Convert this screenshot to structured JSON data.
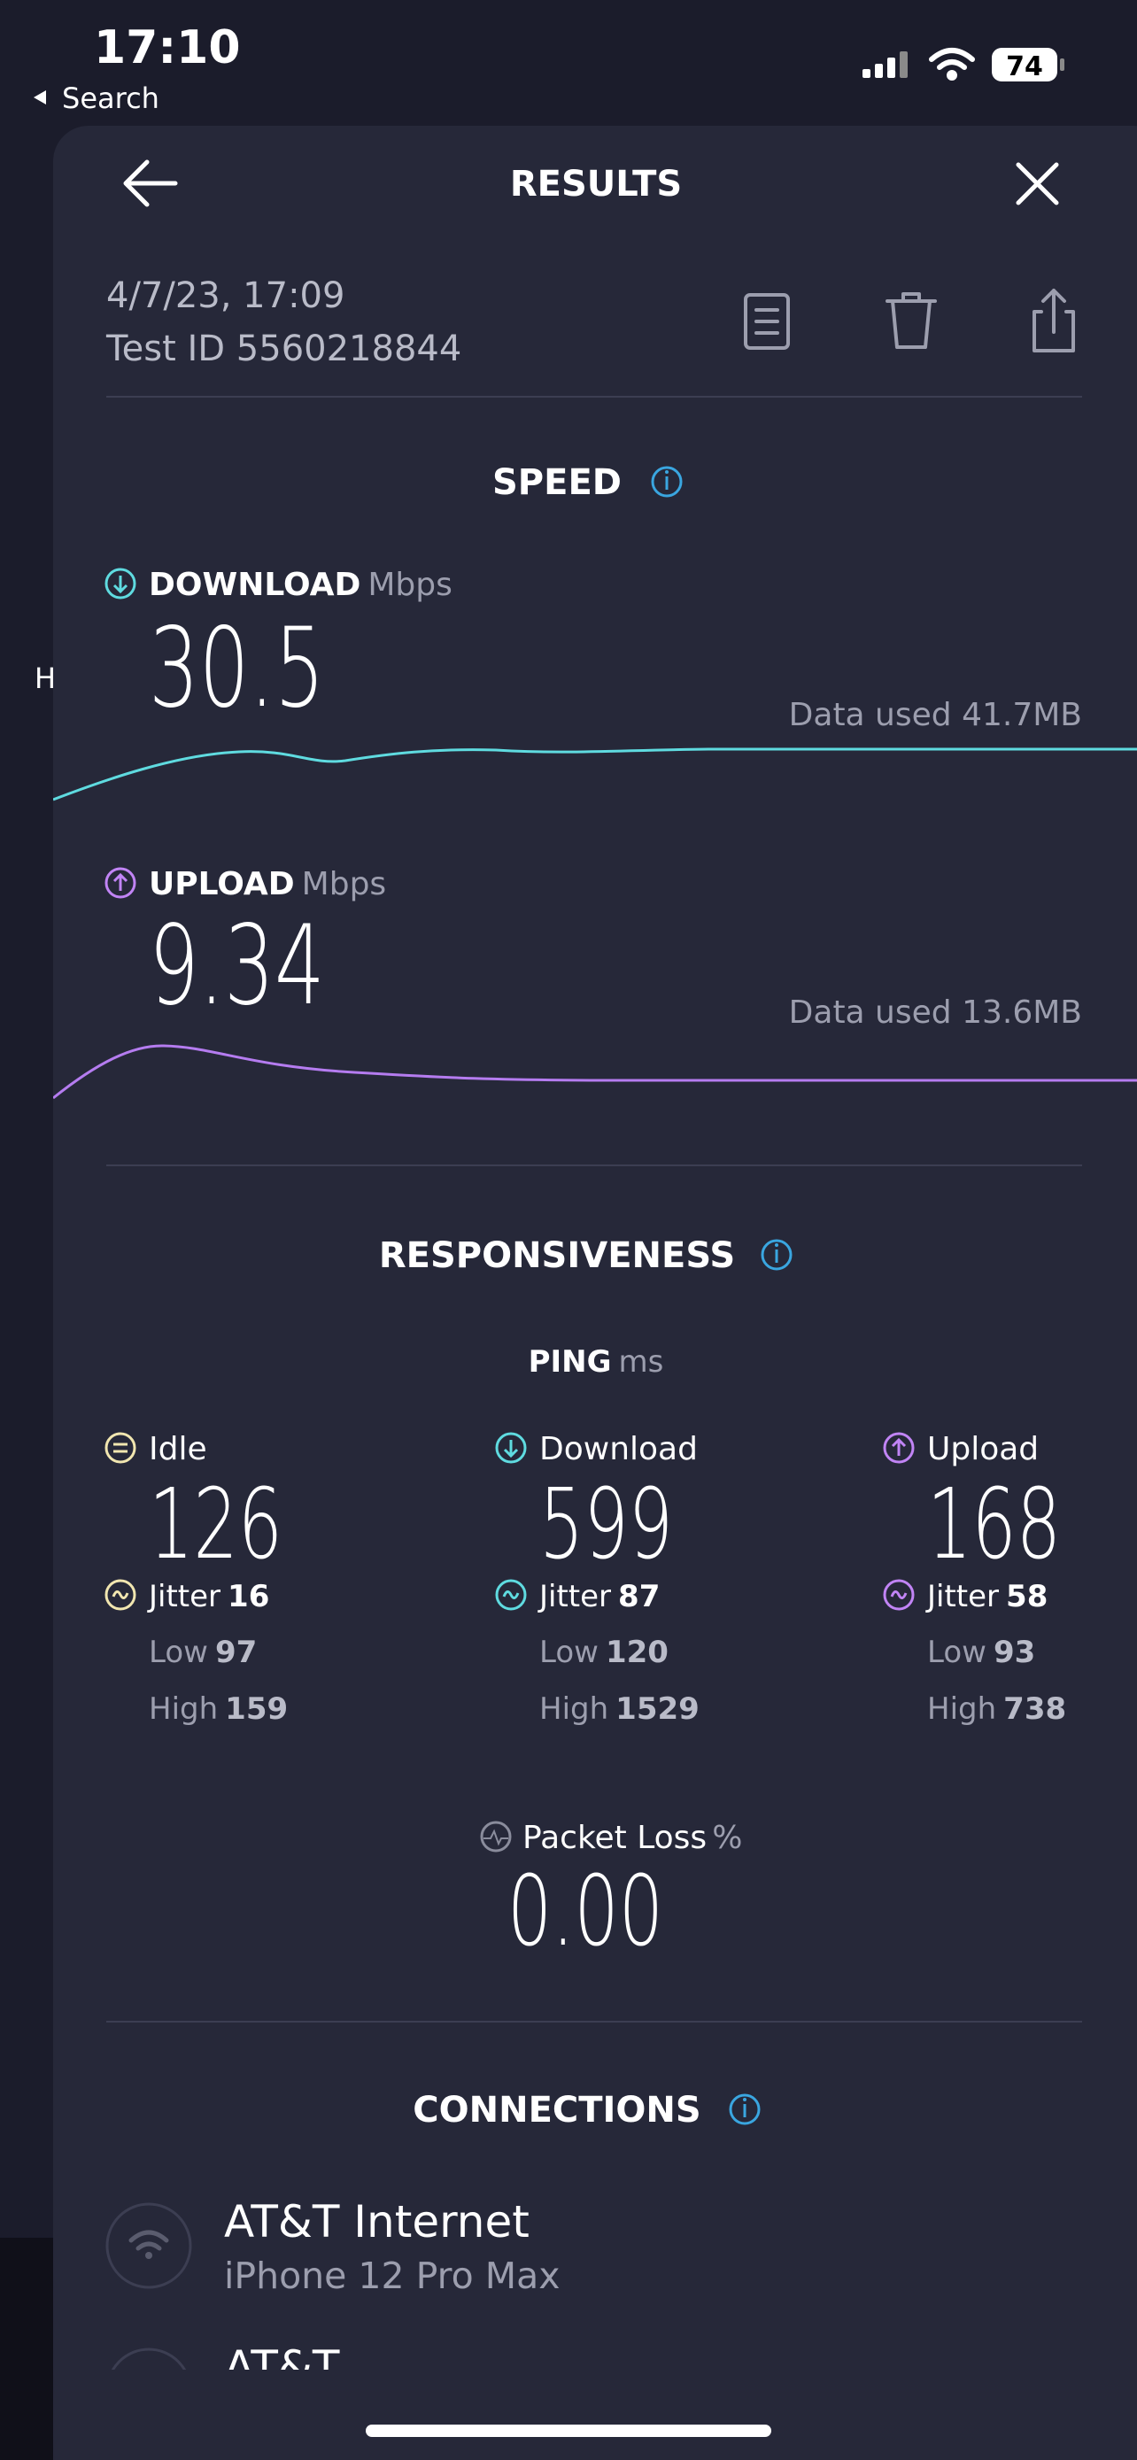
{
  "status_bar": {
    "time": "17:10",
    "back": "Search",
    "battery": 74
  },
  "background_letter": "H",
  "header": {
    "title": "RESULTS"
  },
  "test": {
    "date": "4/7/23, 17:09",
    "id": "Test ID 5560218844"
  },
  "speed": {
    "title": "SPEED",
    "download": {
      "label": "DOWNLOAD",
      "unit": "Mbps",
      "value": 30.5,
      "data_used": "Data used 41.7MB"
    },
    "upload": {
      "label": "UPLOAD",
      "unit": "Mbps",
      "value": 9.34,
      "data_used": "Data used 13.6MB"
    }
  },
  "responsiveness": {
    "title": "RESPONSIVENESS",
    "ping_label": "PING",
    "ping_unit": "ms",
    "columns": [
      {
        "label": "Idle",
        "value": 126,
        "jitter_label": "Jitter",
        "jitter": 16,
        "low_label": "Low",
        "low": 97,
        "high_label": "High",
        "high": 159
      },
      {
        "label": "Download",
        "value": 599,
        "jitter_label": "Jitter",
        "jitter": 87,
        "low_label": "Low",
        "low": 120,
        "high_label": "High",
        "high": 1529
      },
      {
        "label": "Upload",
        "value": 168,
        "jitter_label": "Jitter",
        "jitter": 58,
        "low_label": "Low",
        "low": 93,
        "high_label": "High",
        "high": 738
      }
    ],
    "packet_loss": {
      "label": "Packet Loss",
      "unit": "%",
      "value": "0.00"
    }
  },
  "connections": {
    "title": "CONNECTIONS",
    "items": [
      {
        "name": "AT&T Internet",
        "device": "iPhone 12 Pro Max"
      },
      {
        "name": "AT&T"
      }
    ]
  }
}
